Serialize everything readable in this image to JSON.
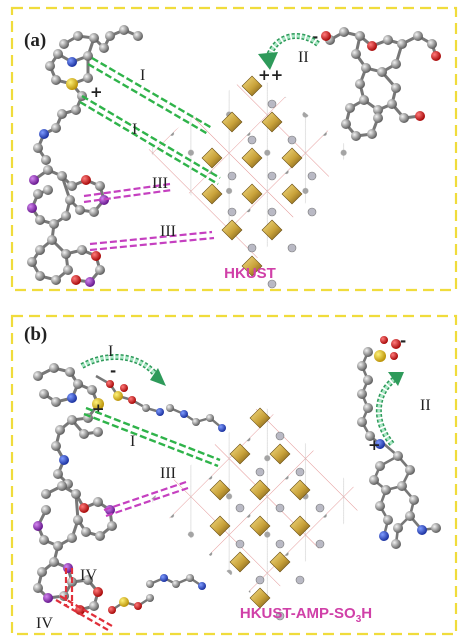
{
  "panels": [
    {
      "letter": "(a)",
      "mof_label": "HKUST",
      "dye_charge": "+",
      "anion_charge": "-",
      "mof_charge": "++",
      "labels": [
        "I",
        "I",
        "III",
        "III",
        "II"
      ]
    },
    {
      "letter": "(b)",
      "mof_label": "HKUST-AMP-SO3H",
      "dye_charge": "+",
      "sulfonate_charge": "-",
      "right_sulfonate_charge": "-",
      "right_cation_charge": "+",
      "labels": [
        "I",
        "I",
        "III",
        "IV",
        "II",
        "IV"
      ]
    }
  ],
  "colors": {
    "frame": "#f0dc3c",
    "interaction_I": "#2fb34a",
    "interaction_III": "#c540c0",
    "interaction_IV": "#e0303a",
    "mof_label": "#d040a8",
    "arrow": "#2e9a5a"
  }
}
